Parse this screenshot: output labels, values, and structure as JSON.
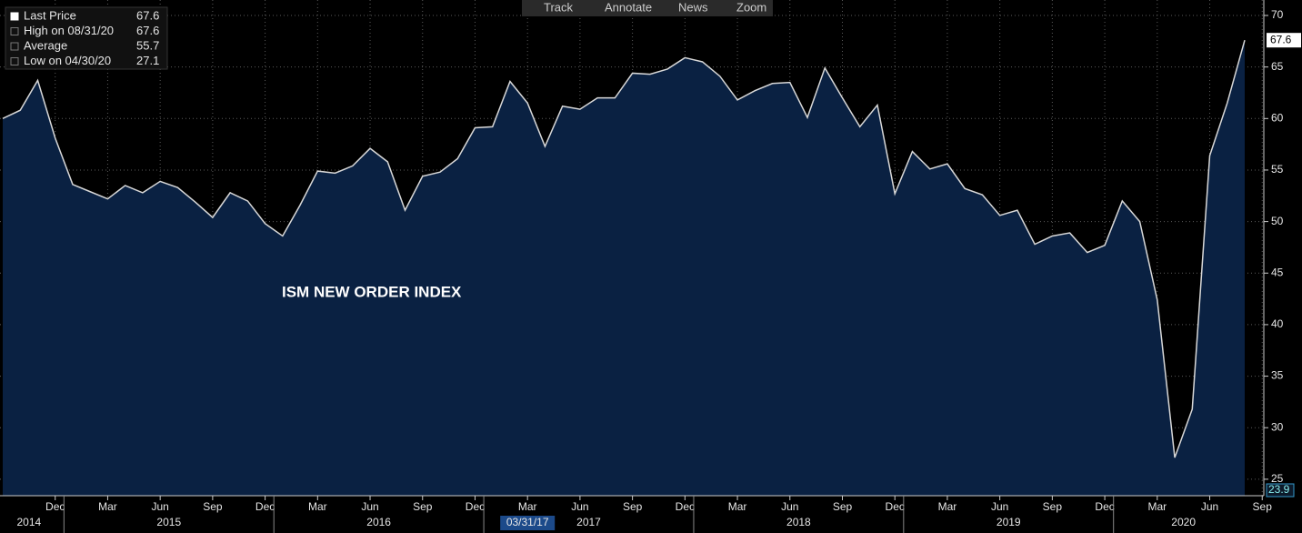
{
  "chart_data": {
    "type": "area",
    "annotation": "ISM NEW ORDER INDEX",
    "toolbar": [
      "Track",
      "Annotate",
      "News",
      "Zoom"
    ],
    "legend": [
      {
        "label": "Last Price",
        "value": 67.6
      },
      {
        "label": "High on 08/31/20",
        "value": 67.6
      },
      {
        "label": "Average",
        "value": 55.7
      },
      {
        "label": "Low on 04/30/20",
        "value": 27.1
      }
    ],
    "crosshair_date": "03/31/17",
    "axis_bottom_label": "23.9",
    "x": [
      "2014-09",
      "2014-10",
      "2014-11",
      "2014-12",
      "2015-01",
      "2015-02",
      "2015-03",
      "2015-04",
      "2015-05",
      "2015-06",
      "2015-07",
      "2015-08",
      "2015-09",
      "2015-10",
      "2015-11",
      "2015-12",
      "2016-01",
      "2016-02",
      "2016-03",
      "2016-04",
      "2016-05",
      "2016-06",
      "2016-07",
      "2016-08",
      "2016-09",
      "2016-10",
      "2016-11",
      "2016-12",
      "2017-01",
      "2017-02",
      "2017-03",
      "2017-04",
      "2017-05",
      "2017-06",
      "2017-07",
      "2017-08",
      "2017-09",
      "2017-10",
      "2017-11",
      "2017-12",
      "2018-01",
      "2018-02",
      "2018-03",
      "2018-04",
      "2018-05",
      "2018-06",
      "2018-07",
      "2018-08",
      "2018-09",
      "2018-10",
      "2018-11",
      "2018-12",
      "2019-01",
      "2019-02",
      "2019-03",
      "2019-04",
      "2019-05",
      "2019-06",
      "2019-07",
      "2019-08",
      "2019-09",
      "2019-10",
      "2019-11",
      "2019-12",
      "2020-01",
      "2020-02",
      "2020-03",
      "2020-04",
      "2020-05",
      "2020-06",
      "2020-07",
      "2020-08"
    ],
    "series": [
      {
        "name": "Last Price",
        "color": "#d8d8d8",
        "fill": "#0a2142",
        "values": [
          60.0,
          60.8,
          63.7,
          58.1,
          53.6,
          52.9,
          52.2,
          53.5,
          52.8,
          53.9,
          53.3,
          51.9,
          50.4,
          52.8,
          52.0,
          49.8,
          48.6,
          51.6,
          54.9,
          54.7,
          55.4,
          57.1,
          55.8,
          51.1,
          54.4,
          54.8,
          56.1,
          59.1,
          59.2,
          63.6,
          61.5,
          57.3,
          61.2,
          60.9,
          62.0,
          62.0,
          64.4,
          64.3,
          64.8,
          65.9,
          65.5,
          64.1,
          61.8,
          62.7,
          63.4,
          63.5,
          60.1,
          64.9,
          62.0,
          59.2,
          61.3,
          52.7,
          56.8,
          55.1,
          55.6,
          53.2,
          52.6,
          50.6,
          51.1,
          47.8,
          48.6,
          48.9,
          47.0,
          47.7,
          52.0,
          50.0,
          42.4,
          27.1,
          31.8,
          56.4,
          61.5,
          67.6
        ]
      }
    ],
    "xticks": [
      {
        "value": "2014-12",
        "label": "Dec"
      },
      {
        "value": "2015-03",
        "label": "Mar"
      },
      {
        "value": "2015-06",
        "label": "Jun"
      },
      {
        "value": "2015-09",
        "label": "Sep"
      },
      {
        "value": "2015-12",
        "label": "Dec"
      },
      {
        "value": "2016-03",
        "label": "Mar"
      },
      {
        "value": "2016-06",
        "label": "Jun"
      },
      {
        "value": "2016-09",
        "label": "Sep"
      },
      {
        "value": "2016-12",
        "label": "Dec"
      },
      {
        "value": "2017-03",
        "label": "Mar"
      },
      {
        "value": "2017-06",
        "label": "Jun"
      },
      {
        "value": "2017-09",
        "label": "Sep"
      },
      {
        "value": "2017-12",
        "label": "Dec"
      },
      {
        "value": "2018-03",
        "label": "Mar"
      },
      {
        "value": "2018-06",
        "label": "Jun"
      },
      {
        "value": "2018-09",
        "label": "Sep"
      },
      {
        "value": "2018-12",
        "label": "Dec"
      },
      {
        "value": "2019-03",
        "label": "Mar"
      },
      {
        "value": "2019-06",
        "label": "Jun"
      },
      {
        "value": "2019-09",
        "label": "Sep"
      },
      {
        "value": "2019-12",
        "label": "Dec"
      },
      {
        "value": "2020-03",
        "label": "Mar"
      },
      {
        "value": "2020-06",
        "label": "Jun"
      },
      {
        "value": "2020-09",
        "label": "Sep"
      }
    ],
    "years": [
      "2014",
      "2015",
      "2016",
      "2017",
      "2018",
      "2019",
      "2020"
    ],
    "ylim": [
      23.4,
      71.5
    ],
    "yticks": [
      25,
      30,
      35,
      40,
      45,
      50,
      55,
      60,
      65,
      70
    ],
    "grid": true
  }
}
